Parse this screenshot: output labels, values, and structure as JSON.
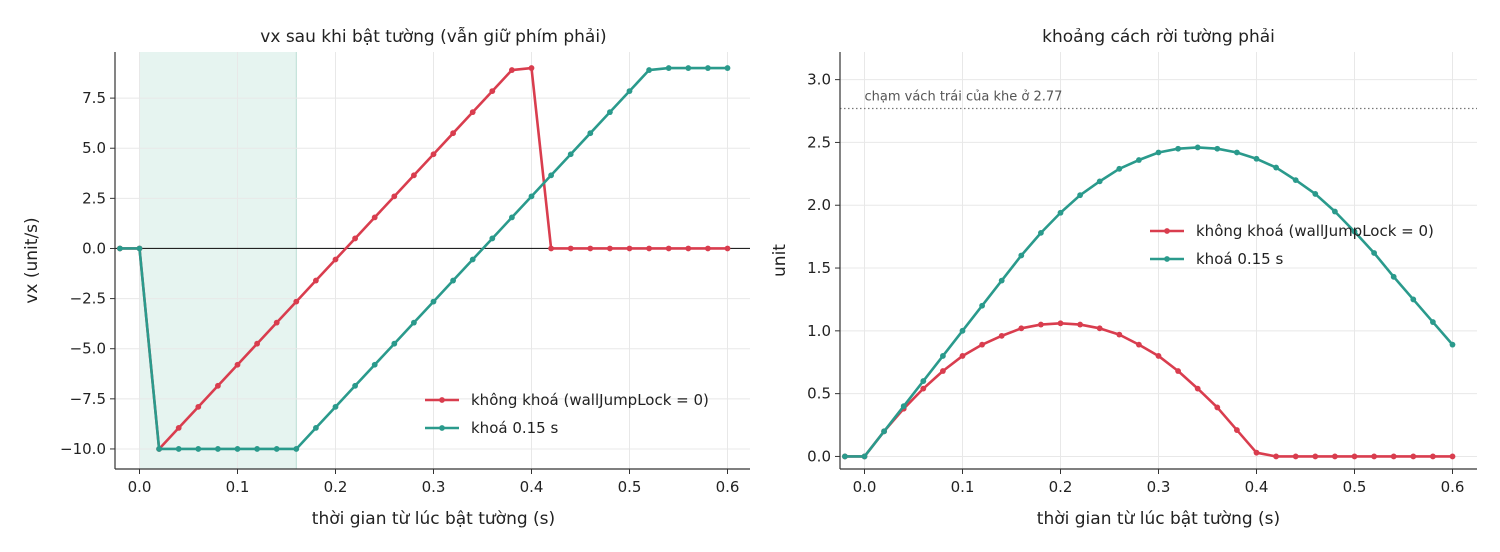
{
  "colors": {
    "red": "#d93d4e",
    "teal": "#2a9a8c",
    "shade": "#dcefe9",
    "grid": "#e8e8e8",
    "axis": "#333333"
  },
  "chart_data": [
    {
      "type": "line",
      "title": "vx sau khi bật tường (vẫn giữ phím phải)",
      "xlabel": "thời gian từ lúc bật tường (s)",
      "ylabel": "vx (unit/s)",
      "xlim": [
        -0.025,
        0.625
      ],
      "ylim": [
        -11.0,
        9.8
      ],
      "xticks": [
        0.0,
        0.1,
        0.2,
        0.3,
        0.4,
        0.5,
        0.6
      ],
      "xtick_labels": [
        "0.0",
        "0.1",
        "0.2",
        "0.3",
        "0.4",
        "0.5",
        "0.6"
      ],
      "yticks": [
        -10.0,
        -7.5,
        -5.0,
        -2.5,
        0.0,
        2.5,
        5.0,
        7.5
      ],
      "ytick_labels": [
        "−10.0",
        "−7.5",
        "−5.0",
        "−2.5",
        "0.0",
        "2.5",
        "5.0",
        "7.5"
      ],
      "grid": true,
      "zero_line": true,
      "shaded_region": {
        "x0": 0.0,
        "x1": 0.16
      },
      "legend": "bottom-right",
      "series": [
        {
          "name": "không khoá (wallJumpLock = 0)",
          "color": "red",
          "x": [
            -0.02,
            0.0,
            0.02,
            0.04,
            0.06,
            0.08,
            0.1,
            0.12,
            0.14,
            0.16,
            0.18,
            0.2,
            0.22,
            0.24,
            0.26,
            0.28,
            0.3,
            0.32,
            0.34,
            0.36,
            0.38,
            0.4,
            0.42,
            0.44,
            0.46,
            0.48,
            0.5,
            0.52,
            0.54,
            0.56,
            0.58,
            0.6
          ],
          "y": [
            0.0,
            0.0,
            -10.0,
            -8.95,
            -7.9,
            -6.85,
            -5.8,
            -4.75,
            -3.7,
            -2.65,
            -1.6,
            -0.55,
            0.5,
            1.55,
            2.6,
            3.65,
            4.7,
            5.75,
            6.8,
            7.85,
            8.9,
            9.0,
            0.0,
            0.0,
            0.0,
            0.0,
            0.0,
            0.0,
            0.0,
            0.0,
            0.0,
            0.0
          ]
        },
        {
          "name": "khoá 0.15 s",
          "color": "teal",
          "x": [
            -0.02,
            0.0,
            0.02,
            0.04,
            0.06,
            0.08,
            0.1,
            0.12,
            0.14,
            0.16,
            0.18,
            0.2,
            0.22,
            0.24,
            0.26,
            0.28,
            0.3,
            0.32,
            0.34,
            0.36,
            0.38,
            0.4,
            0.42,
            0.44,
            0.46,
            0.48,
            0.5,
            0.52,
            0.54,
            0.56,
            0.58,
            0.6
          ],
          "y": [
            0.0,
            0.0,
            -10.0,
            -10.0,
            -10.0,
            -10.0,
            -10.0,
            -10.0,
            -10.0,
            -10.0,
            -8.95,
            -7.9,
            -6.85,
            -5.8,
            -4.75,
            -3.7,
            -2.65,
            -1.6,
            -0.55,
            0.5,
            1.55,
            2.6,
            3.65,
            4.7,
            5.75,
            6.8,
            7.85,
            8.9,
            9.0,
            9.0,
            9.0,
            9.0
          ]
        }
      ]
    },
    {
      "type": "line",
      "title": "khoảng cách rời tường phải",
      "xlabel": "thời gian từ lúc bật tường (s)",
      "ylabel": "unit",
      "xlim": [
        -0.025,
        0.625
      ],
      "ylim": [
        -0.1,
        3.22
      ],
      "xticks": [
        0.0,
        0.1,
        0.2,
        0.3,
        0.4,
        0.5,
        0.6
      ],
      "xtick_labels": [
        "0.0",
        "0.1",
        "0.2",
        "0.3",
        "0.4",
        "0.5",
        "0.6"
      ],
      "yticks": [
        0.0,
        0.5,
        1.0,
        1.5,
        2.0,
        2.5,
        3.0
      ],
      "ytick_labels": [
        "0.0",
        "0.5",
        "1.0",
        "1.5",
        "2.0",
        "2.5",
        "3.0"
      ],
      "grid": true,
      "hline": {
        "y": 2.77,
        "label": "chạm vách trái của khe ở 2.77"
      },
      "legend": "center-right",
      "series": [
        {
          "name": "không khoá (wallJumpLock = 0)",
          "color": "red",
          "x": [
            -0.02,
            0.0,
            0.02,
            0.04,
            0.06,
            0.08,
            0.1,
            0.12,
            0.14,
            0.16,
            0.18,
            0.2,
            0.22,
            0.24,
            0.26,
            0.28,
            0.3,
            0.32,
            0.34,
            0.36,
            0.38,
            0.4,
            0.42,
            0.44,
            0.46,
            0.48,
            0.5,
            0.52,
            0.54,
            0.56,
            0.58,
            0.6
          ],
          "y": [
            0.0,
            0.0,
            0.2,
            0.38,
            0.54,
            0.68,
            0.8,
            0.89,
            0.96,
            1.02,
            1.05,
            1.06,
            1.05,
            1.02,
            0.97,
            0.89,
            0.8,
            0.68,
            0.54,
            0.39,
            0.21,
            0.03,
            0.0,
            0.0,
            0.0,
            0.0,
            0.0,
            0.0,
            0.0,
            0.0,
            0.0,
            0.0
          ]
        },
        {
          "name": "khoá 0.15 s",
          "color": "teal",
          "x": [
            -0.02,
            0.0,
            0.02,
            0.04,
            0.06,
            0.08,
            0.1,
            0.12,
            0.14,
            0.16,
            0.18,
            0.2,
            0.22,
            0.24,
            0.26,
            0.28,
            0.3,
            0.32,
            0.34,
            0.36,
            0.38,
            0.4,
            0.42,
            0.44,
            0.46,
            0.48,
            0.5,
            0.52,
            0.54,
            0.56,
            0.58,
            0.6
          ],
          "y": [
            0.0,
            0.0,
            0.2,
            0.4,
            0.6,
            0.8,
            1.0,
            1.2,
            1.4,
            1.6,
            1.78,
            1.94,
            2.08,
            2.19,
            2.29,
            2.36,
            2.42,
            2.45,
            2.46,
            2.45,
            2.42,
            2.37,
            2.3,
            2.2,
            2.09,
            1.95,
            1.79,
            1.62,
            1.43,
            1.25,
            1.07,
            0.89
          ]
        }
      ]
    }
  ]
}
